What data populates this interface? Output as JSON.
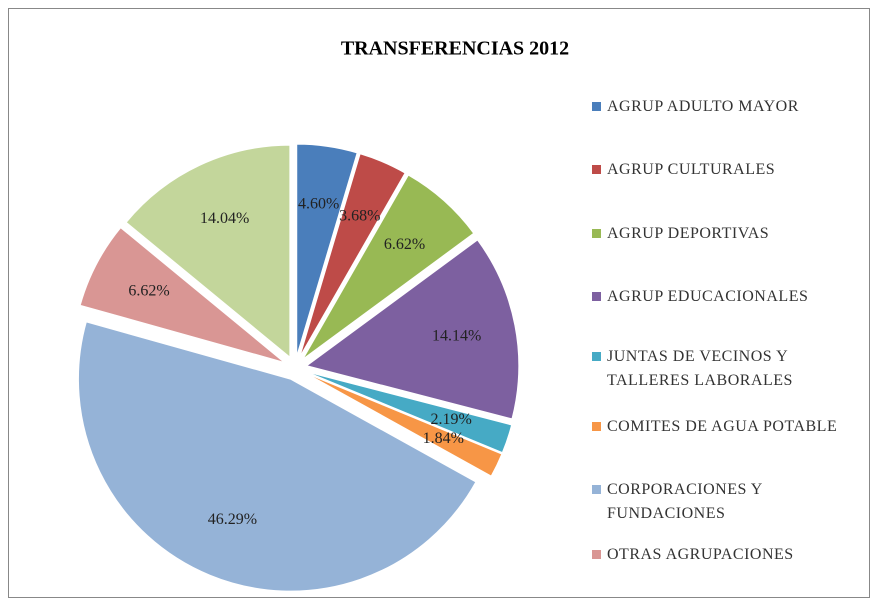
{
  "chart_data": {
    "type": "pie",
    "title": "TRANSFERENCIAS 2012",
    "categories": [
      "AGRUP ADULTO MAYOR",
      "AGRUP CULTURALES",
      "AGRUP DEPORTIVAS",
      "AGRUP EDUCACIONALES",
      "JUNTAS DE VECINOS Y TALLERES LABORALES",
      "COMITES DE AGUA POTABLE",
      "CORPORACIONES Y FUNDACIONES",
      "OTRAS AGRUPACIONES",
      null
    ],
    "values": [
      4.6,
      3.68,
      6.62,
      14.14,
      2.19,
      1.84,
      46.29,
      6.62,
      14.04
    ],
    "value_labels": [
      "4.60%",
      "3.68%",
      "6.62%",
      "14.14%",
      "2.19%",
      "1.84%",
      "46.29%",
      "6.62%",
      "14.04%"
    ],
    "colors": [
      "#4a7ebb",
      "#be4b48",
      "#98b954",
      "#7d60a0",
      "#46aac5",
      "#f79646",
      "#95b3d7",
      "#d99694",
      "#c3d69b"
    ],
    "legend": "right"
  }
}
